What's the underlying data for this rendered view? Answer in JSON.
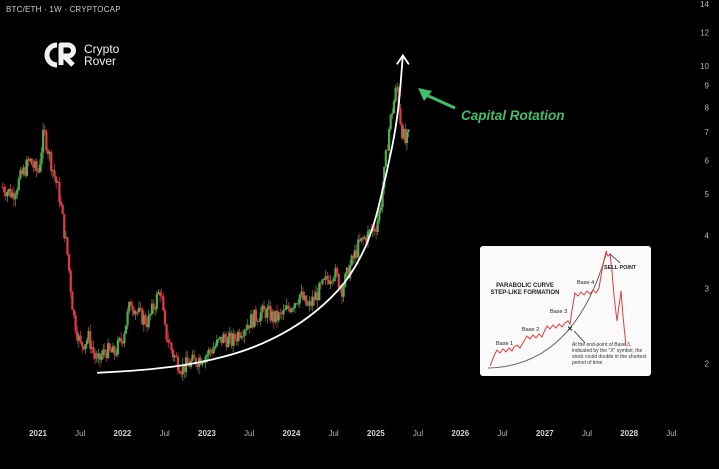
{
  "header": {
    "symbol_line": "BTC/ETH · 1W · CRYPTOCAP"
  },
  "brand": {
    "line1": "Crypto",
    "line2": "Rover"
  },
  "annotation": {
    "label": "Capital Rotation",
    "color": "#3fbf6a"
  },
  "colors": {
    "up": "#4caf50",
    "down": "#e53945",
    "curve": "#ffffff",
    "background": "#000000"
  },
  "inset": {
    "title_line1": "PARABOLIC CURVE",
    "title_line2": "STEP-LIKE FORMATION",
    "base1": "Base 1",
    "base2": "Base 2",
    "base3": "Base 3",
    "base4": "Base 4",
    "sell_point": "SELL POINT",
    "note": "At the end-point of Base 3, indicated by the \"X\" symbol, the stock could double in the shortest period of time"
  },
  "chart_data": {
    "type": "candlestick",
    "title": "BTC/ETH · 1W · CRYPTOCAP",
    "xlabel": "",
    "ylabel": "",
    "x_ticks": [
      "2021",
      "Jul",
      "2022",
      "Jul",
      "2023",
      "Jul",
      "2024",
      "Jul",
      "2025",
      "Jul",
      "2026",
      "Jul",
      "2027",
      "Jul",
      "2028",
      "Jul"
    ],
    "x_tick_dates": [
      2021.0,
      2021.5,
      2022.0,
      2022.5,
      2023.0,
      2023.5,
      2024.0,
      2024.5,
      2025.0,
      2025.5,
      2026.0,
      2026.5,
      2027.0,
      2027.5,
      2028.0,
      2028.5
    ],
    "y_scale": "log",
    "y_ticks": [
      "14",
      "12",
      "10",
      "9",
      "8",
      "7",
      "6",
      "5",
      "4",
      "3",
      "2"
    ],
    "y_tick_values": [
      14,
      12,
      10,
      9,
      8,
      7,
      6,
      5,
      4,
      3,
      2
    ],
    "ylim": [
      1.75,
      14
    ],
    "xlim": [
      2020.55,
      2028.72
    ],
    "series": [
      {
        "name": "BTC/ETH ratio (approx. weekly close)",
        "dates": [
          2020.58,
          2020.7,
          2020.8,
          2020.9,
          2021.0,
          2021.07,
          2021.15,
          2021.25,
          2021.35,
          2021.42,
          2021.5,
          2021.6,
          2021.7,
          2021.8,
          2021.9,
          2022.0,
          2022.1,
          2022.2,
          2022.3,
          2022.45,
          2022.5,
          2022.6,
          2022.7,
          2022.8,
          2022.9,
          2023.0,
          2023.1,
          2023.2,
          2023.3,
          2023.4,
          2023.5,
          2023.6,
          2023.7,
          2023.8,
          2023.9,
          2024.0,
          2024.1,
          2024.2,
          2024.3,
          2024.4,
          2024.5,
          2024.6,
          2024.7,
          2024.8,
          2024.9,
          2025.0,
          2025.05,
          2025.1,
          2025.15,
          2025.2,
          2025.25,
          2025.3,
          2025.35,
          2025.4
        ],
        "values": [
          5.2,
          5.0,
          5.5,
          6.0,
          5.6,
          7.0,
          6.0,
          5.0,
          3.6,
          2.6,
          2.2,
          2.3,
          2.0,
          2.15,
          2.1,
          2.3,
          2.8,
          2.6,
          2.5,
          3.0,
          2.4,
          2.1,
          1.95,
          2.0,
          2.05,
          2.1,
          2.2,
          2.3,
          2.25,
          2.4,
          2.5,
          2.6,
          2.65,
          2.55,
          2.6,
          2.75,
          2.9,
          2.7,
          2.9,
          3.1,
          3.3,
          3.0,
          3.4,
          3.8,
          4.0,
          4.2,
          4.6,
          5.6,
          7.0,
          8.0,
          9.0,
          7.2,
          6.6,
          6.9
        ]
      },
      {
        "name": "Parabolic curve",
        "dates": [
          2021.7,
          2022.3,
          2022.9,
          2023.5,
          2024.0,
          2024.4,
          2024.7,
          2024.95,
          2025.12,
          2025.26,
          2025.32
        ],
        "values": [
          1.9,
          1.93,
          2.0,
          2.15,
          2.4,
          2.75,
          3.2,
          4.0,
          5.5,
          7.5,
          10.6
        ]
      }
    ],
    "annotations": [
      "Capital Rotation"
    ],
    "grid": false,
    "legend": "none"
  }
}
